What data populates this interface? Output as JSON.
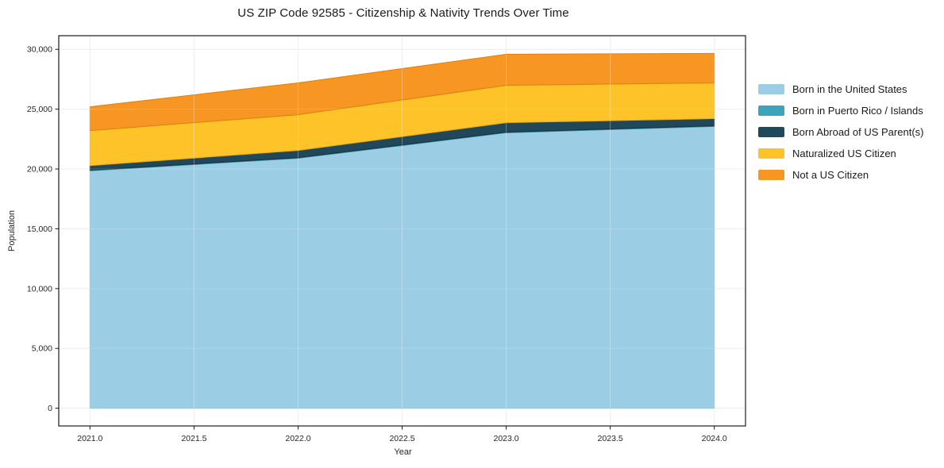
{
  "chart_data": {
    "type": "area",
    "title": "US ZIP Code 92585 - Citizenship & Nativity Trends Over Time",
    "xlabel": "Year",
    "ylabel": "Population",
    "stacked": true,
    "grid": true,
    "legend_position": "right-outside",
    "x": [
      2021,
      2022,
      2023,
      2024
    ],
    "series": [
      {
        "name": "Born in the United States",
        "color": "#9BCDE4",
        "edge": "#7EB9D3",
        "values": [
          19850,
          20900,
          23030,
          23560
        ]
      },
      {
        "name": "Born in Puerto Rico / Islands",
        "color": "#3AA5BA",
        "edge": "#2E8B9E",
        "values": [
          50,
          50,
          50,
          50
        ]
      },
      {
        "name": "Born Abroad of US Parent(s)",
        "color": "#20485A",
        "edge": "#16323F",
        "values": [
          380,
          600,
          790,
          600
        ]
      },
      {
        "name": "Naturalized US Citizen",
        "color": "#FDC328",
        "edge": "#E9AC0F",
        "values": [
          2930,
          2990,
          3130,
          2990
        ]
      },
      {
        "name": "Not a US Citizen",
        "color": "#F79622",
        "edge": "#DE7F10",
        "values": [
          1990,
          2660,
          2590,
          2460
        ]
      }
    ],
    "totals": [
      25200,
      27200,
      29590,
      29660
    ],
    "xlim": [
      2020.85,
      2024.15
    ],
    "ylim": [
      -1483,
      31143
    ],
    "x_ticks": [
      {
        "v": 2021.0,
        "label": "2021.0"
      },
      {
        "v": 2021.5,
        "label": "2021.5"
      },
      {
        "v": 2022.0,
        "label": "2022.0"
      },
      {
        "v": 2022.5,
        "label": "2022.5"
      },
      {
        "v": 2023.0,
        "label": "2023.0"
      },
      {
        "v": 2023.5,
        "label": "2023.5"
      },
      {
        "v": 2024.0,
        "label": "2024.0"
      }
    ],
    "y_ticks": [
      {
        "v": 0,
        "label": "0"
      },
      {
        "v": 5000,
        "label": "5,000"
      },
      {
        "v": 10000,
        "label": "10,000"
      },
      {
        "v": 15000,
        "label": "15,000"
      },
      {
        "v": 20000,
        "label": "20,000"
      },
      {
        "v": 25000,
        "label": "25,000"
      },
      {
        "v": 30000,
        "label": "30,000"
      }
    ],
    "colors": {
      "background": "#ffffff",
      "grid": "#e9e9e9",
      "frame": "#1a1a1a",
      "text": "#262626"
    }
  }
}
